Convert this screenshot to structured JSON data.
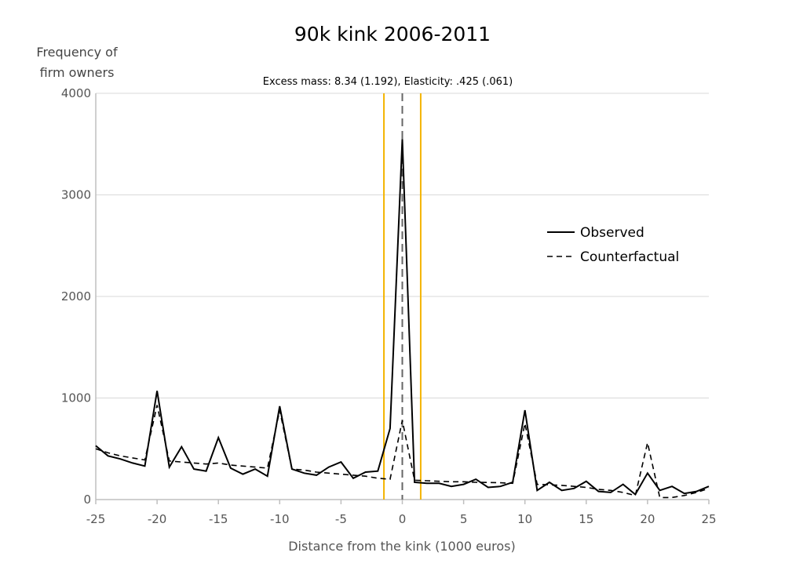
{
  "chart_data": {
    "type": "line",
    "title": "90k kink 2006-2011",
    "ylabel_line1": "Frequency of",
    "ylabel_line2": "firm owners",
    "xlabel": "Distance from the kink (1000 euros)",
    "annotation": "Excess mass: 8.34 (1.192), Elasticity: .425 (.061)",
    "xlim": [
      -25,
      25
    ],
    "ylim": [
      0,
      4000
    ],
    "xticks": [
      -25,
      -20,
      -15,
      -10,
      -5,
      0,
      5,
      10,
      15,
      20,
      25
    ],
    "yticks": [
      0,
      1000,
      2000,
      3000,
      4000
    ],
    "grid": "horizontal",
    "legend_position": "right",
    "kink_line_x": 0,
    "excluded_region": [
      -1.5,
      1.5
    ],
    "colors": {
      "observed": "#000000",
      "counterfactual": "#000000",
      "kink_line": "#666666",
      "excluded_region": "#f4b400",
      "grid": "#d9d9d9",
      "axis": "#bfbfbf"
    },
    "series": [
      {
        "name": "Observed",
        "style": "solid",
        "x": [
          -25,
          -24,
          -23,
          -22,
          -21,
          -20,
          -19,
          -18,
          -17,
          -16,
          -15,
          -14,
          -13,
          -12,
          -11,
          -10,
          -9,
          -8,
          -7,
          -6,
          -5,
          -4,
          -3,
          -2,
          -1,
          0,
          1,
          2,
          3,
          4,
          5,
          6,
          7,
          8,
          9,
          10,
          11,
          12,
          13,
          14,
          15,
          16,
          17,
          18,
          19,
          20,
          21,
          22,
          23,
          24,
          25
        ],
        "values": [
          530,
          430,
          400,
          360,
          330,
          1070,
          320,
          520,
          300,
          280,
          610,
          310,
          250,
          300,
          230,
          920,
          300,
          260,
          240,
          320,
          370,
          210,
          270,
          280,
          700,
          3550,
          170,
          160,
          160,
          130,
          150,
          200,
          120,
          130,
          170,
          880,
          90,
          170,
          90,
          110,
          180,
          80,
          70,
          150,
          50,
          260,
          90,
          130,
          60,
          80,
          130
        ]
      },
      {
        "name": "Counterfactual",
        "style": "dashed",
        "x": [
          -25,
          -24,
          -23,
          -22,
          -21,
          -20,
          -19,
          -18,
          -17,
          -16,
          -15,
          -14,
          -13,
          -12,
          -11,
          -10,
          -9,
          -8,
          -7,
          -6,
          -5,
          -4,
          -3,
          -2,
          -1,
          0,
          1,
          2,
          3,
          4,
          5,
          6,
          7,
          8,
          9,
          10,
          11,
          12,
          13,
          14,
          15,
          16,
          17,
          18,
          19,
          20,
          21,
          22,
          23,
          24,
          25
        ],
        "values": [
          500,
          460,
          430,
          410,
          390,
          930,
          380,
          370,
          360,
          350,
          360,
          340,
          330,
          320,
          310,
          880,
          300,
          290,
          270,
          260,
          250,
          240,
          230,
          210,
          200,
          780,
          190,
          185,
          180,
          175,
          175,
          170,
          168,
          165,
          160,
          750,
          150,
          145,
          140,
          130,
          120,
          100,
          90,
          70,
          40,
          560,
          20,
          20,
          40,
          70,
          110
        ]
      }
    ]
  }
}
